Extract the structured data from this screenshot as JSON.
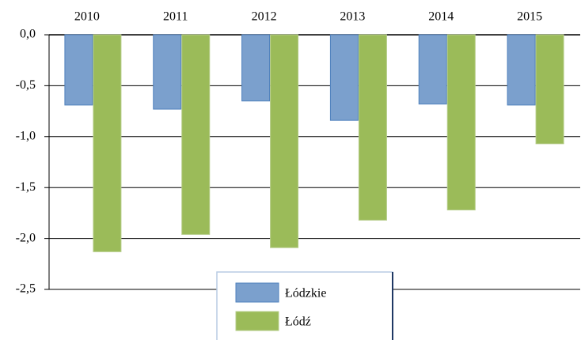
{
  "chart_data": {
    "type": "bar",
    "categories": [
      "2010",
      "2011",
      "2012",
      "2013",
      "2014",
      "2015"
    ],
    "series": [
      {
        "name": "Łódzkie",
        "color": "#7ba0cd",
        "values": [
          -0.69,
          -0.73,
          -0.65,
          -0.84,
          -0.68,
          -0.69
        ]
      },
      {
        "name": "Łódź",
        "color": "#9bbb59",
        "values": [
          -2.13,
          -1.96,
          -2.09,
          -1.82,
          -1.72,
          -1.07
        ]
      }
    ],
    "ylim": [
      -2.5,
      0
    ],
    "yticks": [
      {
        "value": 0,
        "label": "0,0"
      },
      {
        "value": -0.5,
        "label": "-0,5"
      },
      {
        "value": -1,
        "label": "-1,0"
      },
      {
        "value": -1.5,
        "label": "-1,5"
      },
      {
        "value": -2,
        "label": "-2,0"
      },
      {
        "value": -2.5,
        "label": "-2,5"
      }
    ],
    "grid": true,
    "legend": "bottom"
  }
}
